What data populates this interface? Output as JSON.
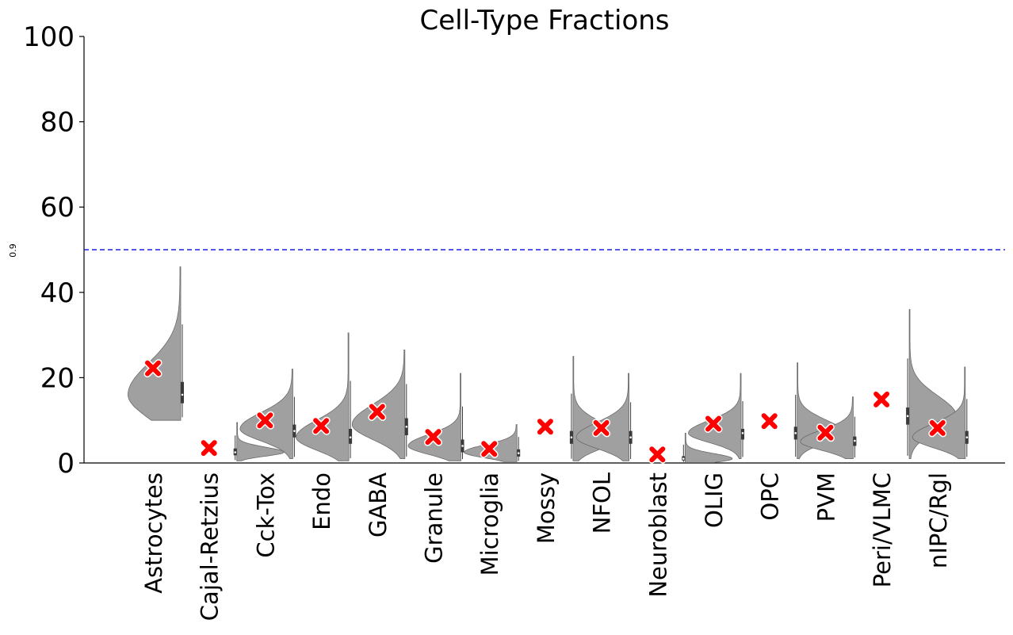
{
  "chart_data": {
    "type": "violin",
    "title": "Cell-Type Fractions",
    "ylabel": "0.9",
    "xlabel": "",
    "ylim": [
      0,
      100
    ],
    "yticks": [
      0,
      20,
      40,
      60,
      80,
      100
    ],
    "reference_line": {
      "y": 50,
      "color": "#1f1fe0",
      "style": "dashed"
    },
    "violin_color": "#a0a0a0",
    "marker_color": "#ff0000",
    "marker_shape": "X",
    "grid": false,
    "categories": [
      "Astrocytes",
      "Cajal-Retzius",
      "Cck-Tox",
      "Endo",
      "GABA",
      "Granule",
      "Microglia",
      "Mossy",
      "NFOL",
      "Neuroblast",
      "OLIG",
      "OPC",
      "PVM",
      "Peri/VLMC",
      "nIPC/Rgl"
    ],
    "marked_values": [
      22.2,
      3.5,
      10.0,
      8.7,
      12.0,
      6.1,
      3.3,
      8.5,
      8.2,
      2.0,
      9.2,
      9.8,
      7.1,
      14.9,
      8.2
    ],
    "distributions": [
      {
        "category": "Astrocytes",
        "side": "left",
        "min": 10,
        "max": 46,
        "center": 16,
        "q1": 14,
        "median": 16,
        "q3": 19,
        "spread": 5.5
      },
      {
        "category": "Cajal-Retzius",
        "side": "right",
        "min": 0.5,
        "max": 9.5,
        "center": 2.5,
        "q1": 1.8,
        "median": 2.5,
        "q3": 3.4,
        "spread": 0.9
      },
      {
        "category": "Cck-Tox",
        "side": "left",
        "min": 1,
        "max": 22,
        "center": 8,
        "q1": 6,
        "median": 7.5,
        "q3": 9,
        "spread": 2.8
      },
      {
        "category": "Endo",
        "side": "left",
        "min": 0.5,
        "max": 30.5,
        "center": 6,
        "q1": 4.5,
        "median": 6,
        "q3": 8,
        "spread": 3.0
      },
      {
        "category": "GABA",
        "side": "left",
        "min": 1,
        "max": 26.5,
        "center": 9,
        "q1": 6.5,
        "median": 8.5,
        "q3": 10.5,
        "spread": 3.5
      },
      {
        "category": "Granule",
        "side": "left",
        "min": 0.5,
        "max": 21,
        "center": 4,
        "q1": 2.5,
        "median": 4,
        "q3": 5.5,
        "spread": 2.0
      },
      {
        "category": "Microglia",
        "side": "left",
        "min": 0.3,
        "max": 9,
        "center": 2.5,
        "q1": 1.5,
        "median": 2.3,
        "q3": 3.2,
        "spread": 1.3
      },
      {
        "category": "Mossy",
        "side": "right",
        "min": 0.5,
        "max": 25,
        "center": 6,
        "q1": 4.5,
        "median": 6,
        "q3": 7.5,
        "spread": 2.6
      },
      {
        "category": "NFOL",
        "side": "left",
        "min": 0.5,
        "max": 21,
        "center": 6,
        "q1": 4.5,
        "median": 6,
        "q3": 7.5,
        "spread": 2.6
      },
      {
        "category": "Neuroblast",
        "side": "right",
        "min": 0.1,
        "max": 7,
        "center": 1,
        "q1": 0.6,
        "median": 1,
        "q3": 1.6,
        "spread": 0.9
      },
      {
        "category": "OLIG",
        "side": "left",
        "min": 1,
        "max": 21,
        "center": 7,
        "q1": 5.5,
        "median": 7,
        "q3": 8,
        "spread": 2.2
      },
      {
        "category": "OPC",
        "side": "right",
        "min": 1,
        "max": 23.5,
        "center": 7,
        "q1": 5.5,
        "median": 7,
        "q3": 8.5,
        "spread": 2.3
      },
      {
        "category": "PVM",
        "side": "left",
        "min": 1,
        "max": 15.5,
        "center": 5,
        "q1": 4,
        "median": 5.2,
        "q3": 6.2,
        "spread": 2.0
      },
      {
        "category": "Peri/VLMC",
        "side": "right",
        "min": 1,
        "max": 36,
        "center": 11,
        "q1": 9,
        "median": 11,
        "q3": 13,
        "spread": 3.5
      },
      {
        "category": "nIPC/Rgl",
        "side": "left",
        "min": 1,
        "max": 22.5,
        "center": 6,
        "q1": 4.5,
        "median": 6,
        "q3": 7.5,
        "spread": 2.4
      }
    ]
  }
}
